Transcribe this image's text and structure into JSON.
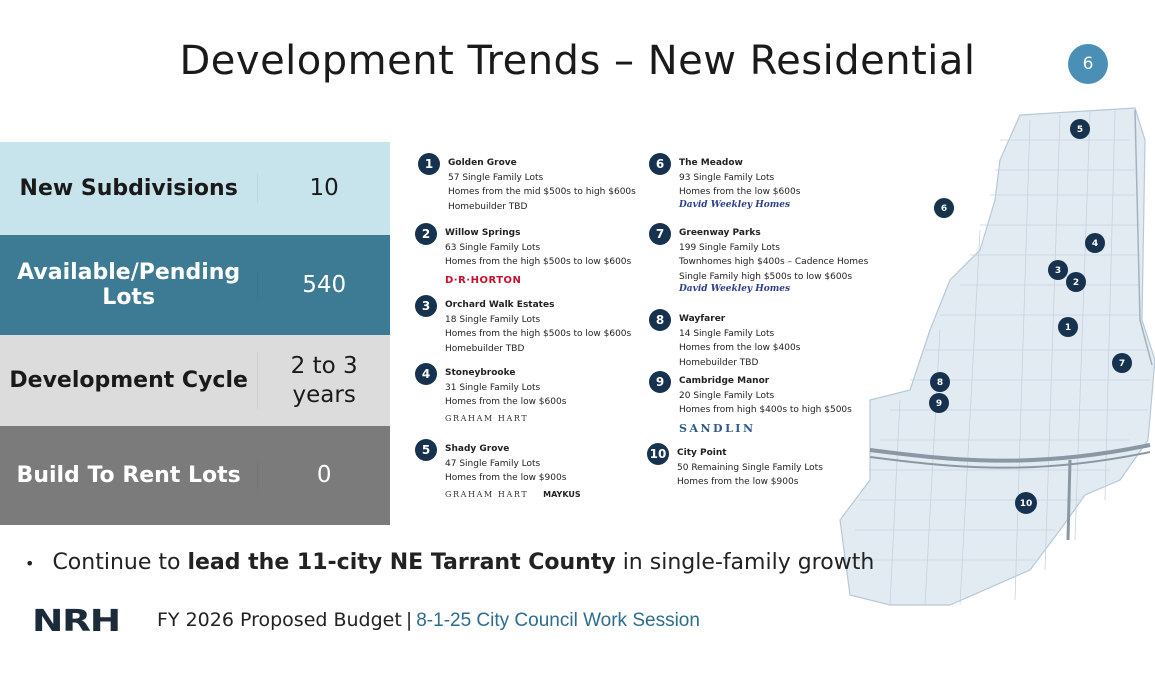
{
  "title": "Development Trends – New Residential",
  "page_number": "6",
  "stats": [
    {
      "label": "New Subdivisions",
      "value": "10"
    },
    {
      "label": "Available/Pending Lots",
      "value": "540"
    },
    {
      "label": "Development Cycle",
      "value": "2 to 3 years"
    },
    {
      "label": "Build To Rent Lots",
      "value": "0"
    }
  ],
  "subdivisions": [
    {
      "num": "1",
      "name": "Golden Grove",
      "line1": "57 Single Family Lots",
      "line2": "Homes from the mid $500s to high $600s",
      "line3": "Homebuilder TBD"
    },
    {
      "num": "2",
      "name": "Willow Springs",
      "line1": "63 Single Family Lots",
      "line2": "Homes from the high $500s to low $600s",
      "builder": "D·R·HORTON"
    },
    {
      "num": "3",
      "name": "Orchard Walk Estates",
      "line1": "18 Single Family Lots",
      "line2": "Homes from the high $500s to low $600s",
      "line3": "Homebuilder TBD"
    },
    {
      "num": "4",
      "name": "Stoneybrooke",
      "line1": "31 Single Family Lots",
      "line2": "Homes from the low $600s",
      "builder": "GRAHAM HART"
    },
    {
      "num": "5",
      "name": "Shady Grove",
      "line1": "47 Single Family Lots",
      "line2": "Homes from the low $900s",
      "builder": "GRAHAM HART",
      "builder2": "MAYKUS"
    },
    {
      "num": "6",
      "name": "The Meadow",
      "line1": "93 Single Family Lots",
      "line2": "Homes from the low $600s",
      "builder": "David Weekley Homes"
    },
    {
      "num": "7",
      "name": "Greenway Parks",
      "line1": "199 Single Family Lots",
      "line2": "Townhomes high $400s – Cadence Homes",
      "line3": "Single Family high $500s to low $600s",
      "builder": "David Weekley Homes"
    },
    {
      "num": "8",
      "name": "Wayfarer",
      "line1": "14 Single Family Lots",
      "line2": "Homes from the low $400s",
      "line3": "Homebuilder TBD"
    },
    {
      "num": "9",
      "name": "Cambridge Manor",
      "line1": "20 Single Family Lots",
      "line2": "Homes from high $400s to high $500s",
      "builder": "SANDLIN"
    },
    {
      "num": "10",
      "name": "City Point",
      "line1": "50 Remaining Single Family Lots",
      "line2": "Homes from the low $900s"
    }
  ],
  "bullet": {
    "pre": "Continue to ",
    "bold": "lead the 11-city NE Tarrant County",
    "post": " in single-family growth"
  },
  "footer": {
    "logo": "NRH",
    "text": "FY 2026 Proposed Budget",
    "sep": "|",
    "session": "8-1-25 City Council Work Session"
  },
  "colors": {
    "row1": "#c7e3ec",
    "row2": "#3d7a93",
    "row3": "#dcdcdc",
    "row4": "#7b7b7b",
    "marker": "#16324f",
    "page_badge": "#4a8fb5"
  }
}
